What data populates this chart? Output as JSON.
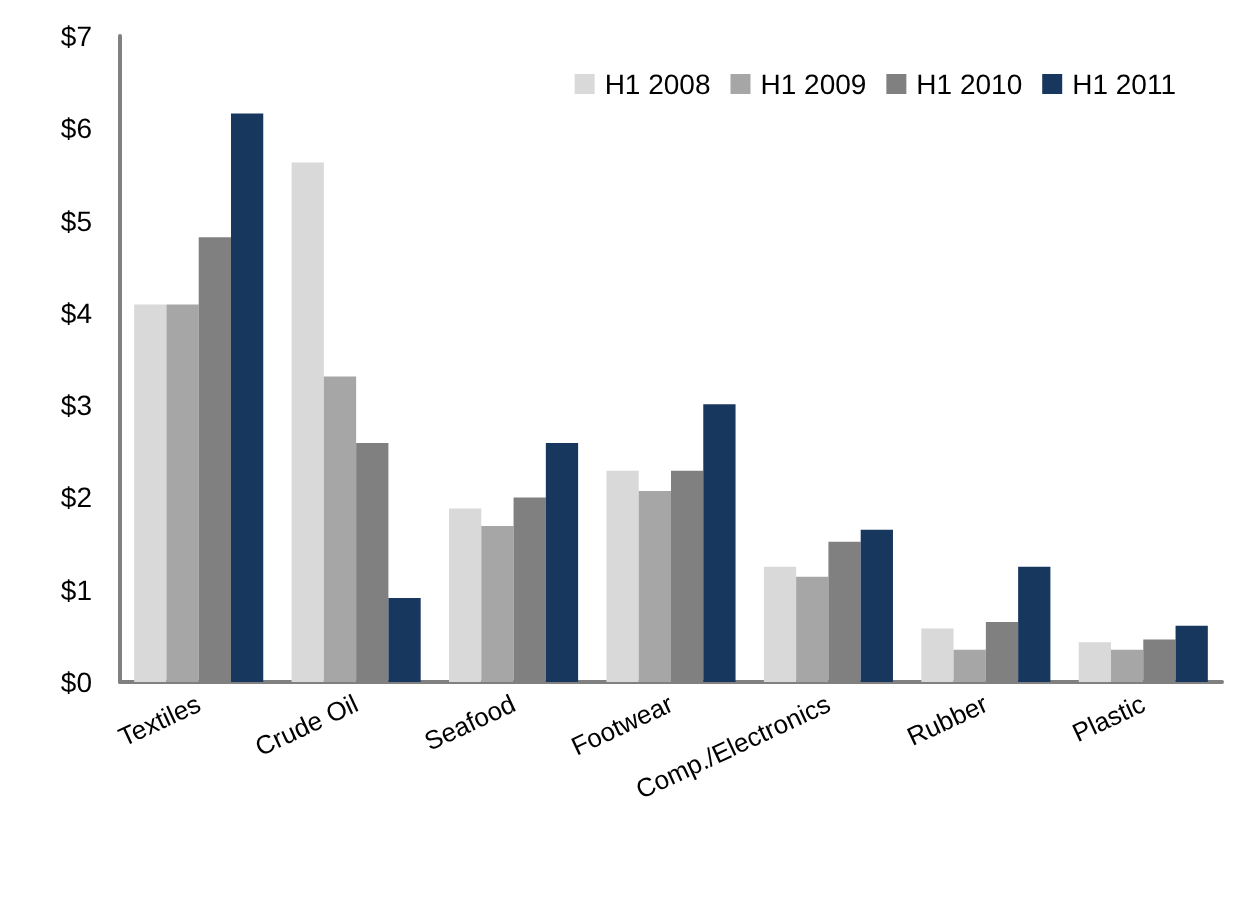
{
  "chart_data": {
    "type": "bar",
    "categories": [
      "Textiles",
      "Crude Oil",
      "Seafood",
      "Footwear",
      "Comp./Electronics",
      "Rubber",
      "Plastic"
    ],
    "series": [
      {
        "name": "H1 2008",
        "color": "#d9d9d9",
        "values": [
          4.09,
          5.63,
          1.88,
          2.29,
          1.25,
          0.58,
          0.43
        ]
      },
      {
        "name": "H1 2009",
        "color": "#a6a6a6",
        "values": [
          4.09,
          3.31,
          1.69,
          2.07,
          1.14,
          0.35,
          0.35
        ]
      },
      {
        "name": "H1 2010",
        "color": "#808080",
        "values": [
          4.82,
          2.59,
          2.0,
          2.29,
          1.52,
          0.65,
          0.46
        ]
      },
      {
        "name": "H1 2011",
        "color": "#17375e",
        "values": [
          6.16,
          0.91,
          2.59,
          3.01,
          1.65,
          1.25,
          0.61
        ]
      }
    ],
    "ylim": [
      0,
      7
    ],
    "yticks": [
      {
        "value": 0,
        "label": "$0"
      },
      {
        "value": 1,
        "label": "$1"
      },
      {
        "value": 2,
        "label": "$2"
      },
      {
        "value": 3,
        "label": "$3"
      },
      {
        "value": 4,
        "label": "$4"
      },
      {
        "value": 5,
        "label": "$5"
      },
      {
        "value": 6,
        "label": "$6"
      },
      {
        "value": 7,
        "label": "$7"
      }
    ],
    "grid": false,
    "legend": "top right"
  }
}
